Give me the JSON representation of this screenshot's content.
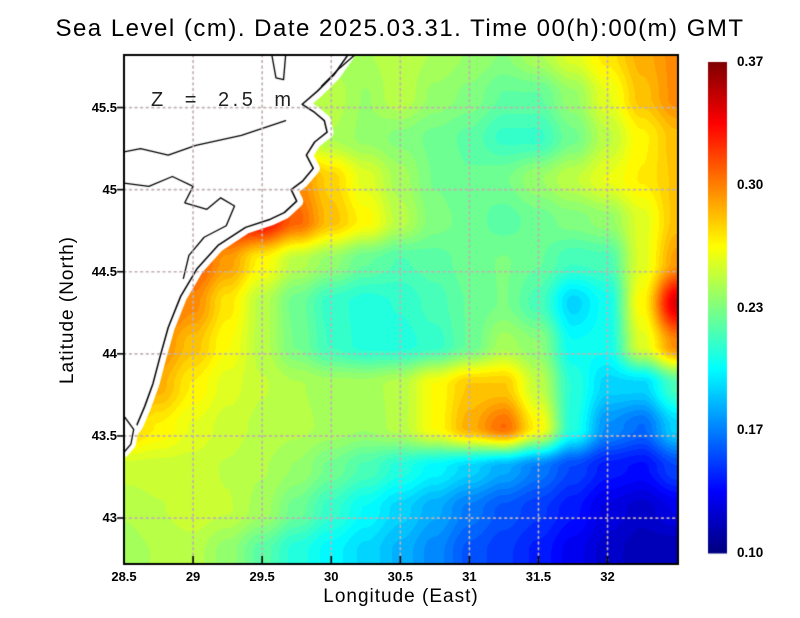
{
  "title": "Sea Level (cm). Date 2025.03.31. Time 00(h):00(m) GMT",
  "annotation": "Z = 2.5 m",
  "axes": {
    "x_label": "Longitude (East)",
    "y_label": "Latitude (North)",
    "x_tick_labels": [
      "28.5",
      "29",
      "29.5",
      "30",
      "30.5",
      "31",
      "31.5",
      "32"
    ],
    "x_tick_values": [
      28.5,
      29,
      29.5,
      30,
      30.5,
      31,
      31.5,
      32
    ],
    "y_tick_labels": [
      "45.5",
      "45",
      "44.5",
      "44",
      "43.5",
      "43"
    ],
    "y_tick_values": [
      45.5,
      45,
      44.5,
      44,
      43.5,
      43
    ]
  },
  "colorbar": {
    "labels": [
      "0.37",
      "0.30",
      "0.23",
      "0.17",
      "0.10"
    ],
    "min": 0.1,
    "max": 0.37,
    "colormap": "jet"
  },
  "colors": {
    "background": "#ffffff",
    "land": "#ffffff",
    "coastline": "#000000",
    "grid_dots": "#c3b0b2",
    "text": "#000000",
    "colorbar_min_color": "#000080",
    "colorbar_max_color": "#800000"
  },
  "chart_data": {
    "type": "heatmap",
    "title": "Sea Level (cm). Date 2025.03.31. Time 00(h):00(m) GMT",
    "xlabel": "Longitude (East)",
    "ylabel": "Latitude (North)",
    "x_range": [
      28.5,
      32.51
    ],
    "y_range": [
      42.72,
      45.82
    ],
    "value_range": [
      0.1,
      0.37
    ],
    "colormap": "jet",
    "grid_on": true,
    "legend_position": "right-colorbar",
    "grid": {
      "lons": [
        28.5,
        28.75,
        29.0,
        29.25,
        29.5,
        29.75,
        30.0,
        30.25,
        30.5,
        30.75,
        31.0,
        31.25,
        31.5,
        31.75,
        32.0,
        32.25,
        32.5
      ],
      "lats": [
        45.82,
        45.55,
        45.3,
        45.05,
        44.8,
        44.55,
        44.3,
        44.05,
        43.8,
        43.55,
        43.3,
        43.05,
        42.8
      ],
      "values": [
        [
          0.24,
          0.24,
          0.24,
          0.24,
          0.24,
          0.242,
          0.244,
          0.247,
          0.251,
          0.247,
          0.242,
          0.237,
          0.247,
          0.26,
          0.275,
          0.29,
          0.3
        ],
        [
          0.25,
          0.25,
          0.25,
          0.25,
          0.25,
          0.25,
          0.251,
          0.242,
          0.252,
          0.241,
          0.236,
          0.227,
          0.227,
          0.241,
          0.262,
          0.285,
          0.3
        ],
        [
          0.26,
          0.26,
          0.26,
          0.26,
          0.26,
          0.256,
          0.247,
          0.241,
          0.236,
          0.231,
          0.226,
          0.216,
          0.216,
          0.231,
          0.251,
          0.271,
          0.286
        ],
        [
          0.3,
          0.3,
          0.3,
          0.3,
          0.3,
          0.3,
          0.28,
          0.26,
          0.245,
          0.232,
          0.228,
          0.232,
          0.242,
          0.252,
          0.263,
          0.273,
          0.284
        ],
        [
          0.32,
          0.32,
          0.32,
          0.33,
          0.335,
          0.31,
          0.285,
          0.27,
          0.25,
          0.235,
          0.23,
          0.225,
          0.23,
          0.235,
          0.24,
          0.26,
          0.285
        ],
        [
          0.33,
          0.33,
          0.315,
          0.295,
          0.27,
          0.25,
          0.24,
          0.228,
          0.222,
          0.225,
          0.23,
          0.233,
          0.228,
          0.218,
          0.22,
          0.26,
          0.295
        ],
        [
          0.32,
          0.315,
          0.3,
          0.275,
          0.25,
          0.23,
          0.215,
          0.21,
          0.213,
          0.22,
          0.228,
          0.233,
          0.22,
          0.19,
          0.205,
          0.27,
          0.345
        ],
        [
          0.31,
          0.3,
          0.285,
          0.268,
          0.25,
          0.232,
          0.217,
          0.21,
          0.21,
          0.215,
          0.228,
          0.245,
          0.238,
          0.203,
          0.205,
          0.26,
          0.3
        ],
        [
          0.305,
          0.29,
          0.272,
          0.26,
          0.253,
          0.248,
          0.245,
          0.245,
          0.25,
          0.268,
          0.283,
          0.283,
          0.252,
          0.212,
          0.19,
          0.19,
          0.22
        ],
        [
          0.285,
          0.272,
          0.262,
          0.255,
          0.251,
          0.249,
          0.246,
          0.243,
          0.25,
          0.268,
          0.29,
          0.308,
          0.27,
          0.21,
          0.172,
          0.162,
          0.19
        ],
        [
          0.255,
          0.255,
          0.255,
          0.252,
          0.248,
          0.242,
          0.231,
          0.221,
          0.21,
          0.2,
          0.19,
          0.179,
          0.166,
          0.152,
          0.14,
          0.136,
          0.152
        ],
        [
          0.248,
          0.252,
          0.256,
          0.253,
          0.245,
          0.23,
          0.215,
          0.202,
          0.19,
          0.179,
          0.166,
          0.156,
          0.149,
          0.139,
          0.126,
          0.12,
          0.128
        ],
        [
          0.245,
          0.248,
          0.25,
          0.24,
          0.225,
          0.21,
          0.2,
          0.191,
          0.181,
          0.17,
          0.156,
          0.149,
          0.141,
          0.13,
          0.12,
          0.114,
          0.113
        ]
      ]
    },
    "coastline": [
      [
        30.12,
        45.82
      ],
      [
        30.02,
        45.7
      ],
      [
        29.9,
        45.6
      ],
      [
        29.79,
        45.52
      ],
      [
        29.88,
        45.47
      ],
      [
        29.95,
        45.42
      ],
      [
        29.97,
        45.35
      ],
      [
        29.88,
        45.29
      ],
      [
        29.82,
        45.21
      ],
      [
        29.87,
        45.13
      ],
      [
        29.79,
        45.05
      ],
      [
        29.71,
        45.0
      ],
      [
        29.75,
        44.93
      ],
      [
        29.66,
        44.86
      ],
      [
        29.56,
        44.82
      ],
      [
        29.38,
        44.77
      ],
      [
        29.18,
        44.66
      ],
      [
        29.03,
        44.52
      ],
      [
        28.91,
        44.35
      ],
      [
        28.82,
        44.16
      ],
      [
        28.76,
        43.98
      ],
      [
        28.71,
        43.82
      ],
      [
        28.65,
        43.68
      ],
      [
        28.59,
        43.56
      ],
      [
        28.52,
        43.49
      ],
      [
        28.5,
        43.47
      ]
    ],
    "land_details": [
      {
        "name": "bay-arc",
        "pts": [
          [
            29.67,
            45.42
          ],
          [
            29.35,
            45.33
          ],
          [
            29.02,
            45.27
          ],
          [
            28.82,
            45.21
          ],
          [
            28.62,
            45.25
          ],
          [
            28.5,
            45.23
          ]
        ]
      },
      {
        "name": "lagoon-complex",
        "pts": [
          [
            28.5,
            45.04
          ],
          [
            28.68,
            45.02
          ],
          [
            28.85,
            45.08
          ],
          [
            29.0,
            45.02
          ],
          [
            28.94,
            44.92
          ],
          [
            29.1,
            44.88
          ],
          [
            29.2,
            44.95
          ],
          [
            29.3,
            44.9
          ],
          [
            29.24,
            44.78
          ],
          [
            29.08,
            44.71
          ],
          [
            28.97,
            44.6
          ],
          [
            28.93,
            44.46
          ]
        ]
      },
      {
        "name": "estuary-inlet",
        "pts": [
          [
            29.57,
            45.82
          ],
          [
            29.6,
            45.68
          ],
          [
            29.655,
            45.67
          ],
          [
            29.67,
            45.82
          ]
        ]
      },
      {
        "name": "spit-outer",
        "pts": [
          [
            30.17,
            45.82
          ],
          [
            30.06,
            45.74
          ],
          [
            29.93,
            45.63
          ]
        ]
      },
      {
        "name": "cape-kaliakra",
        "pts": [
          [
            28.5,
            43.62
          ],
          [
            28.57,
            43.54
          ],
          [
            28.55,
            43.45
          ],
          [
            28.5,
            43.4
          ]
        ],
        "mask": true
      }
    ]
  }
}
